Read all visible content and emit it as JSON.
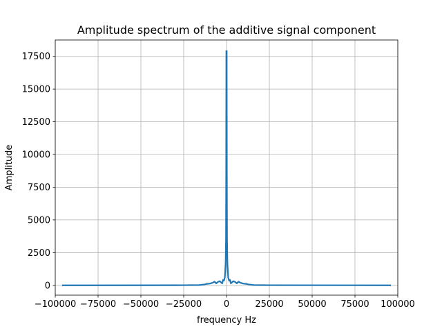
{
  "chart_data": {
    "type": "line",
    "title": "Amplitude spectrum of the additive signal component",
    "xlabel": "frequency Hz",
    "ylabel": "Amplitude",
    "xlim": [
      -100000,
      100000
    ],
    "ylim": [
      -750,
      18750
    ],
    "xticks": [
      -100000,
      -75000,
      -50000,
      -25000,
      0,
      25000,
      50000,
      75000,
      100000
    ],
    "xtick_labels": [
      "−100000",
      "−75000",
      "−50000",
      "−25000",
      "0",
      "25000",
      "50000",
      "75000",
      "100000"
    ],
    "yticks": [
      0,
      2500,
      5000,
      7500,
      10000,
      12500,
      15000,
      17500
    ],
    "ytick_labels": [
      "0",
      "2500",
      "5000",
      "7500",
      "10000",
      "12500",
      "15000",
      "17500"
    ],
    "grid": true,
    "color": "#1f77b4",
    "series": [
      {
        "x": [
          -96000,
          -25000,
          -16000,
          -13000,
          -12000,
          -10000,
          -9000,
          -8000,
          -7000,
          -6000,
          -5000,
          -4000,
          -3000,
          -2500,
          -2000,
          -1500,
          -1000,
          -800,
          -500,
          -300,
          -200,
          -100,
          0,
          100,
          200,
          300,
          500,
          800,
          1000,
          1500,
          2000,
          2500,
          3000,
          4000,
          5000,
          6000,
          7000,
          8000,
          9000,
          10000,
          12000,
          13000,
          16000,
          25000,
          96000
        ],
        "y": [
          0,
          10,
          20,
          60,
          100,
          130,
          160,
          200,
          280,
          150,
          260,
          320,
          200,
          150,
          420,
          350,
          600,
          1000,
          1800,
          3500,
          8000,
          17900,
          17900,
          17900,
          8000,
          3500,
          1800,
          1000,
          600,
          350,
          420,
          150,
          200,
          320,
          260,
          150,
          280,
          200,
          160,
          130,
          100,
          60,
          20,
          10,
          0
        ]
      }
    ]
  }
}
